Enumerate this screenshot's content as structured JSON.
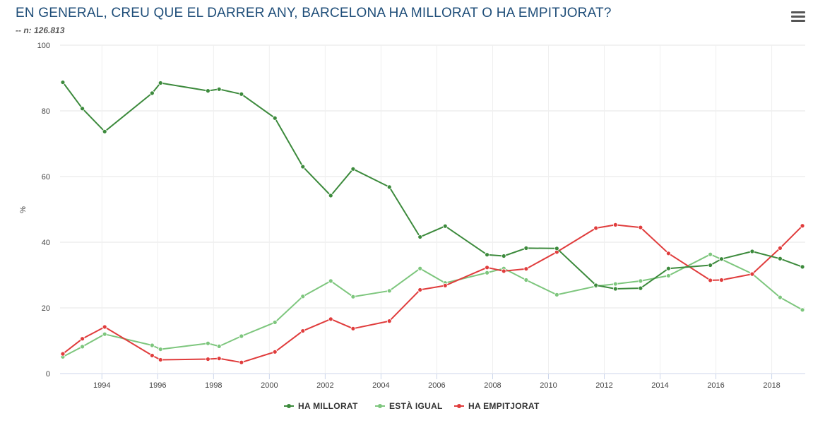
{
  "header": {
    "title": "EN GENERAL, CREU QUE EL DARRER ANY, BARCELONA HA MILLORAT O HA EMPITJORAT?",
    "subtitle": "-- n: 126.813"
  },
  "chart_data": {
    "type": "line",
    "ylabel": "%",
    "xlabel": "",
    "ylim": [
      0,
      100
    ],
    "xlim": [
      1992.5,
      2019.2
    ],
    "yticks": [
      0,
      20,
      40,
      60,
      80,
      100
    ],
    "xticks": [
      1994,
      1996,
      1998,
      2000,
      2002,
      2004,
      2006,
      2008,
      2010,
      2012,
      2014,
      2016,
      2018
    ],
    "grid": true,
    "legend": "bottom-center",
    "series": [
      {
        "name": "HA MILLORAT",
        "color": "#3c8a3c",
        "points": [
          [
            1992.6,
            88.7
          ],
          [
            1993.3,
            80.7
          ],
          [
            1994.1,
            73.7
          ],
          [
            1995.8,
            85.4
          ],
          [
            1996.1,
            88.5
          ],
          [
            1997.8,
            86.1
          ],
          [
            1998.2,
            86.6
          ],
          [
            1999.0,
            85.1
          ],
          [
            2000.2,
            77.8
          ],
          [
            2001.2,
            63.0
          ],
          [
            2002.2,
            54.2
          ],
          [
            2003.0,
            62.3
          ],
          [
            2004.3,
            56.8
          ],
          [
            2005.4,
            41.6
          ],
          [
            2006.3,
            44.9
          ],
          [
            2007.8,
            36.2
          ],
          [
            2008.4,
            35.8
          ],
          [
            2009.2,
            38.2
          ],
          [
            2010.3,
            38.1
          ],
          [
            2011.7,
            26.9
          ],
          [
            2012.4,
            25.8
          ],
          [
            2013.3,
            26.0
          ],
          [
            2014.3,
            32.0
          ],
          [
            2015.8,
            33.0
          ],
          [
            2016.2,
            34.9
          ],
          [
            2017.3,
            37.2
          ],
          [
            2018.3,
            35.0
          ],
          [
            2019.1,
            32.5
          ]
        ]
      },
      {
        "name": "ESTÀ IGUAL",
        "color": "#7dc67d",
        "points": [
          [
            1992.6,
            5.1
          ],
          [
            1993.3,
            8.2
          ],
          [
            1994.1,
            12.0
          ],
          [
            1995.8,
            8.6
          ],
          [
            1996.1,
            7.4
          ],
          [
            1997.8,
            9.2
          ],
          [
            1998.2,
            8.3
          ],
          [
            1999.0,
            11.4
          ],
          [
            2000.2,
            15.6
          ],
          [
            2001.2,
            23.5
          ],
          [
            2002.2,
            28.2
          ],
          [
            2003.0,
            23.4
          ],
          [
            2004.3,
            25.2
          ],
          [
            2005.4,
            32.0
          ],
          [
            2006.3,
            27.6
          ],
          [
            2007.8,
            30.7
          ],
          [
            2008.4,
            32.0
          ],
          [
            2009.2,
            28.5
          ],
          [
            2010.3,
            24.0
          ],
          [
            2011.7,
            26.6
          ],
          [
            2012.4,
            27.3
          ],
          [
            2013.3,
            28.2
          ],
          [
            2014.3,
            29.8
          ],
          [
            2015.8,
            36.3
          ],
          [
            2016.2,
            34.8
          ],
          [
            2017.3,
            30.4
          ],
          [
            2018.3,
            23.2
          ],
          [
            2019.1,
            19.4
          ]
        ]
      },
      {
        "name": "HA EMPITJORAT",
        "color": "#e03c3c",
        "points": [
          [
            1992.6,
            6.0
          ],
          [
            1993.3,
            10.6
          ],
          [
            1994.1,
            14.2
          ],
          [
            1995.8,
            5.5
          ],
          [
            1996.1,
            4.2
          ],
          [
            1997.8,
            4.4
          ],
          [
            1998.2,
            4.6
          ],
          [
            1999.0,
            3.4
          ],
          [
            2000.2,
            6.6
          ],
          [
            2001.2,
            13.0
          ],
          [
            2002.2,
            16.6
          ],
          [
            2003.0,
            13.7
          ],
          [
            2004.3,
            16.0
          ],
          [
            2005.4,
            25.5
          ],
          [
            2006.3,
            26.8
          ],
          [
            2007.8,
            32.3
          ],
          [
            2008.4,
            31.2
          ],
          [
            2009.2,
            31.9
          ],
          [
            2010.3,
            37.0
          ],
          [
            2011.7,
            44.3
          ],
          [
            2012.4,
            45.3
          ],
          [
            2013.3,
            44.5
          ],
          [
            2014.3,
            36.6
          ],
          [
            2015.8,
            28.4
          ],
          [
            2016.2,
            28.5
          ],
          [
            2017.3,
            30.3
          ],
          [
            2018.3,
            38.2
          ],
          [
            2019.1,
            45.0
          ]
        ]
      }
    ]
  }
}
